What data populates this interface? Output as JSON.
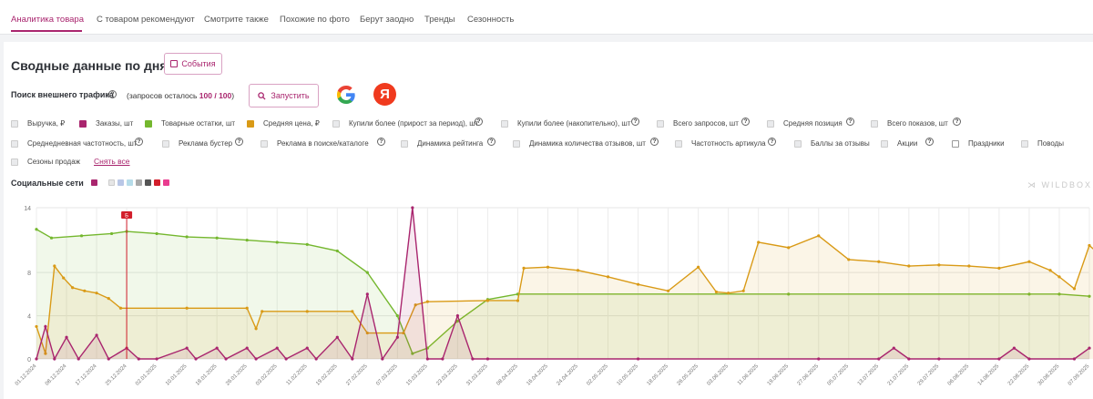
{
  "tabs": [
    {
      "label": "Аналитика товара",
      "active": true
    },
    {
      "label": "С товаром рекомендуют",
      "active": false
    },
    {
      "label": "Смотрите также",
      "active": false
    },
    {
      "label": "Похожие по фото",
      "active": false
    },
    {
      "label": "Берут заодно",
      "active": false
    },
    {
      "label": "Тренды",
      "active": false
    },
    {
      "label": "Сезонность",
      "active": false
    }
  ],
  "header": {
    "title": "Сводные данные по дням",
    "events_button": "События"
  },
  "traffic": {
    "label": "Поиск внешнего трафика",
    "quota_prefix": "(запросов осталось ",
    "quota_value": "100 / 100",
    "quota_suffix": ")",
    "run_button": "Запустить",
    "google_letter": "G",
    "yandex_letter": "Я"
  },
  "metrics_row1": [
    {
      "label": "Выручка, ₽",
      "checked": false,
      "color": "",
      "help": false
    },
    {
      "label": "Заказы, шт",
      "checked": true,
      "color": "#a9256e",
      "help": false
    },
    {
      "label": "Товарные остатки, шт",
      "checked": true,
      "color": "#74b72e",
      "help": false
    },
    {
      "label": "Средняя цена, ₽",
      "checked": true,
      "color": "#d99a16",
      "help": false
    },
    {
      "label": "Купили более (прирост за период), шт",
      "checked": false,
      "color": "",
      "help": true
    },
    {
      "label": "Купили более (накопительно), шт",
      "checked": false,
      "color": "",
      "help": true
    },
    {
      "label": "Всего запросов, шт",
      "checked": false,
      "color": "",
      "help": true
    },
    {
      "label": "Средняя позиция",
      "checked": false,
      "color": "",
      "help": true
    },
    {
      "label": "Всего показов, шт",
      "checked": false,
      "color": "",
      "help": true
    }
  ],
  "metrics_row2": [
    {
      "label": "Среднедневная частотность, шт",
      "checked": false,
      "help": true
    },
    {
      "label": "Реклама бустер",
      "checked": false,
      "help": true
    },
    {
      "label": "Реклама в поиске/каталоге",
      "checked": false,
      "help": true
    },
    {
      "label": "Динамика рейтинга",
      "checked": false,
      "help": true
    },
    {
      "label": "Динамика количества отзывов, шт",
      "checked": false,
      "help": true
    },
    {
      "label": "Частотность артикула",
      "checked": false,
      "help": true
    },
    {
      "label": "Баллы за отзывы",
      "checked": false,
      "help": false
    },
    {
      "label": "Акции",
      "checked": false,
      "help": true
    },
    {
      "label": "Праздники",
      "checked": false,
      "empty": true,
      "help": false
    },
    {
      "label": "Поводы",
      "checked": false,
      "help": false
    }
  ],
  "metrics_row3": [
    {
      "label": "Сезоны продаж",
      "checked": false
    }
  ],
  "reset_link": "Снять все",
  "social": {
    "label": "Социальные сети",
    "icons": [
      "checkbox-icon",
      "vk-icon",
      "ok-icon",
      "telegram-icon",
      "instagram-icon",
      "youtube-icon",
      "tiktok-icon"
    ],
    "icon_colors": [
      "#a9256e",
      "#e0e0e0",
      "#b9c7e6",
      "#b6dce9",
      "#a8a8a8",
      "#555555",
      "#d21e2b",
      "#e93c8f"
    ]
  },
  "brand": {
    "watermark": "WILDBOX"
  },
  "colors": {
    "accent": "#a9256e",
    "orders": "#a9256e",
    "stock": "#74b72e",
    "price": "#d99a16"
  },
  "chart_data": {
    "type": "line",
    "y_ticks": [
      "0",
      "4",
      "8",
      "14"
    ],
    "ylim": [
      0,
      14
    ],
    "grid": true,
    "x_ticks": [
      "01.12.2024",
      "08.12.2024",
      "17.12.2024",
      "25.12.2024",
      "02.01.2025",
      "10.01.2025",
      "18.01.2025",
      "26.01.2025",
      "03.02.2025",
      "11.02.2025",
      "19.02.2025",
      "27.02.2025",
      "07.03.2025",
      "15.03.2025",
      "23.03.2025",
      "31.03.2025",
      "08.04.2025",
      "16.04.2025",
      "24.04.2025",
      "02.05.2025",
      "10.05.2025",
      "18.05.2025",
      "26.05.2025",
      "03.06.2025",
      "11.06.2025",
      "19.06.2025",
      "27.06.2025",
      "05.07.2025",
      "13.07.2025",
      "21.07.2025",
      "29.07.2025",
      "06.08.2025",
      "14.08.2025",
      "22.08.2025",
      "30.08.2025",
      "07.09.2025"
    ],
    "event_marker": {
      "label": "Б",
      "x_index": 3
    },
    "series": [
      {
        "name": "Товарные остатки, шт",
        "color": "#74b72e",
        "points": [
          [
            0,
            12
          ],
          [
            0.5,
            11.2
          ],
          [
            1.5,
            11.4
          ],
          [
            2.5,
            11.6
          ],
          [
            3,
            11.8
          ],
          [
            4,
            11.6
          ],
          [
            5,
            11.3
          ],
          [
            6,
            11.2
          ],
          [
            7,
            11
          ],
          [
            8,
            10.8
          ],
          [
            9,
            10.6
          ],
          [
            10,
            10
          ],
          [
            11,
            8
          ],
          [
            12,
            4
          ],
          [
            12.5,
            0.5
          ],
          [
            13,
            1
          ],
          [
            14,
            3.5
          ],
          [
            15,
            5.5
          ],
          [
            16,
            6
          ],
          [
            25,
            6
          ],
          [
            33,
            6
          ],
          [
            34,
            6
          ],
          [
            35,
            5.8
          ]
        ]
      },
      {
        "name": "Средняя цена, ₽",
        "color": "#d99a16",
        "points": [
          [
            0,
            3
          ],
          [
            0.3,
            0.5
          ],
          [
            0.6,
            8.6
          ],
          [
            0.9,
            7.5
          ],
          [
            1.2,
            6.6
          ],
          [
            1.6,
            6.3
          ],
          [
            2,
            6.1
          ],
          [
            2.4,
            5.6
          ],
          [
            2.8,
            4.7
          ],
          [
            5,
            4.7
          ],
          [
            7,
            4.7
          ],
          [
            7.3,
            2.8
          ],
          [
            7.5,
            4.4
          ],
          [
            9,
            4.4
          ],
          [
            10.5,
            4.4
          ],
          [
            11,
            2.4
          ],
          [
            12.2,
            2.4
          ],
          [
            12.6,
            5
          ],
          [
            13,
            5.3
          ],
          [
            15,
            5.4
          ],
          [
            16,
            5.4
          ],
          [
            16.2,
            8.4
          ],
          [
            17,
            8.5
          ],
          [
            18,
            8.2
          ],
          [
            19,
            7.6
          ],
          [
            20,
            6.9
          ],
          [
            21,
            6.3
          ],
          [
            22,
            8.5
          ],
          [
            22.6,
            6.2
          ],
          [
            23,
            6.1
          ],
          [
            23.5,
            6.3
          ],
          [
            24,
            10.8
          ],
          [
            25,
            10.3
          ],
          [
            26,
            11.4
          ],
          [
            27,
            9.2
          ],
          [
            28,
            9
          ],
          [
            29,
            8.6
          ],
          [
            30,
            8.7
          ],
          [
            31,
            8.6
          ],
          [
            32,
            8.4
          ],
          [
            33,
            9
          ],
          [
            33.7,
            8.2
          ],
          [
            34,
            7.6
          ],
          [
            34.5,
            6.5
          ],
          [
            35,
            10.5
          ],
          [
            35.5,
            9.3
          ]
        ]
      },
      {
        "name": "Заказы, шт",
        "color": "#a9256e",
        "points": [
          [
            0,
            0
          ],
          [
            0.3,
            3
          ],
          [
            0.6,
            0
          ],
          [
            1,
            2
          ],
          [
            1.4,
            0
          ],
          [
            2,
            2.2
          ],
          [
            2.4,
            0
          ],
          [
            3,
            1
          ],
          [
            3.4,
            0
          ],
          [
            4,
            0
          ],
          [
            5,
            1
          ],
          [
            5.3,
            0
          ],
          [
            6,
            1
          ],
          [
            6.3,
            0
          ],
          [
            7,
            1
          ],
          [
            7.3,
            0
          ],
          [
            8,
            1
          ],
          [
            8.3,
            0
          ],
          [
            9,
            1
          ],
          [
            9.3,
            0
          ],
          [
            10,
            2
          ],
          [
            10.5,
            0
          ],
          [
            11,
            6
          ],
          [
            11.5,
            0
          ],
          [
            12,
            2
          ],
          [
            12.5,
            14
          ],
          [
            13,
            0
          ],
          [
            13.5,
            0
          ],
          [
            14,
            4
          ],
          [
            14.5,
            0
          ],
          [
            15,
            0
          ],
          [
            20,
            0
          ],
          [
            26,
            0
          ],
          [
            28,
            0
          ],
          [
            28.5,
            1
          ],
          [
            29,
            0
          ],
          [
            30,
            0
          ],
          [
            32,
            0
          ],
          [
            32.5,
            1
          ],
          [
            33,
            0
          ],
          [
            34.5,
            0
          ],
          [
            35,
            1
          ]
        ]
      }
    ]
  }
}
